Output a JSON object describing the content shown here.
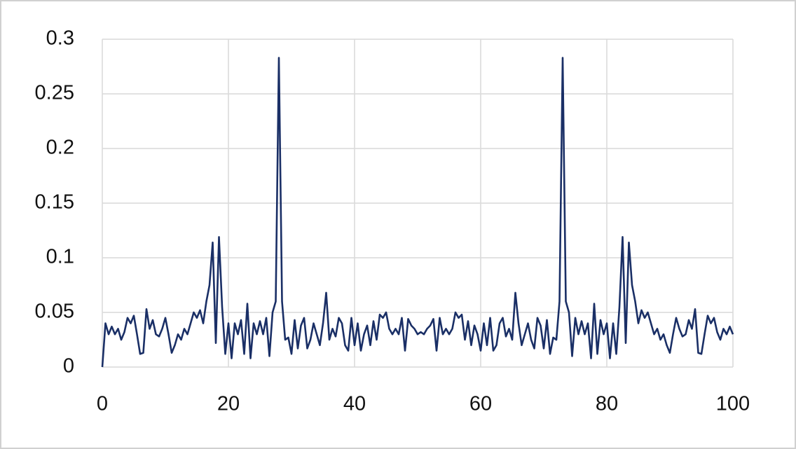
{
  "chart_data": {
    "type": "line",
    "x": [
      0,
      0.5,
      1,
      1.5,
      2,
      2.5,
      3,
      3.5,
      4,
      4.5,
      5,
      5.5,
      6,
      6.5,
      7,
      7.5,
      8,
      8.5,
      9,
      9.5,
      10,
      10.5,
      11,
      11.5,
      12,
      12.5,
      13,
      13.5,
      14,
      14.5,
      15,
      15.5,
      16,
      16.5,
      17,
      17.5,
      18,
      18.5,
      19,
      19.5,
      20,
      20.5,
      21,
      21.5,
      22,
      22.5,
      23,
      23.5,
      24,
      24.5,
      25,
      25.5,
      26,
      26.5,
      27,
      27.5,
      28,
      28.5,
      29,
      29.5,
      30,
      30.5,
      31,
      31.5,
      32,
      32.5,
      33,
      33.5,
      34,
      34.5,
      35,
      35.5,
      36,
      36.5,
      37,
      37.5,
      38,
      38.5,
      39,
      39.5,
      40,
      40.5,
      41,
      41.5,
      42,
      42.5,
      43,
      43.5,
      44,
      44.5,
      45,
      45.5,
      46,
      46.5,
      47,
      47.5,
      48,
      48.5,
      49,
      49.5,
      50,
      50.5,
      51,
      51.5,
      52,
      52.5,
      53,
      53.5,
      54,
      54.5,
      55,
      55.5,
      56,
      56.5,
      57,
      57.5,
      58,
      58.5,
      59,
      59.5,
      60,
      60.5,
      61,
      61.5,
      62,
      62.5,
      63,
      63.5,
      64,
      64.5,
      65,
      65.5,
      66,
      66.5,
      67,
      67.5,
      68,
      68.5,
      69,
      69.5,
      70,
      70.5,
      71,
      71.5,
      72,
      72.5,
      73,
      73.5,
      74,
      74.5,
      75,
      75.5,
      76,
      76.5,
      77,
      77.5,
      78,
      78.5,
      79,
      79.5,
      80,
      80.5,
      81,
      81.5,
      82,
      82.5,
      83,
      83.5,
      84,
      84.5,
      85,
      85.5,
      86,
      86.5,
      87,
      87.5,
      88,
      88.5,
      89,
      89.5,
      90,
      90.5,
      91,
      91.5,
      92,
      92.5,
      93,
      93.5,
      94,
      94.5,
      95,
      95.5,
      96,
      96.5,
      97,
      97.5,
      98,
      98.5,
      99,
      99.5,
      100
    ],
    "series": [
      {
        "color": "#1a2f66",
        "values": [
          0,
          0.04,
          0.03,
          0.037,
          0.03,
          0.035,
          0.025,
          0.032,
          0.045,
          0.04,
          0.047,
          0.03,
          0.012,
          0.013,
          0.053,
          0.035,
          0.043,
          0.03,
          0.028,
          0.035,
          0.045,
          0.03,
          0.013,
          0.02,
          0.03,
          0.025,
          0.035,
          0.03,
          0.04,
          0.05,
          0.045,
          0.052,
          0.04,
          0.06,
          0.075,
          0.114,
          0.022,
          0.119,
          0.055,
          0.012,
          0.04,
          0.008,
          0.04,
          0.03,
          0.043,
          0.012,
          0.058,
          0.008,
          0.04,
          0.03,
          0.042,
          0.03,
          0.045,
          0.01,
          0.05,
          0.06,
          0.283,
          0.06,
          0.025,
          0.027,
          0.012,
          0.043,
          0.017,
          0.038,
          0.045,
          0.017,
          0.025,
          0.04,
          0.03,
          0.02,
          0.04,
          0.068,
          0.025,
          0.035,
          0.028,
          0.045,
          0.04,
          0.02,
          0.015,
          0.045,
          0.02,
          0.04,
          0.015,
          0.03,
          0.038,
          0.02,
          0.042,
          0.025,
          0.048,
          0.045,
          0.05,
          0.035,
          0.03,
          0.035,
          0.03,
          0.045,
          0.015,
          0.044,
          0.038,
          0.035,
          0.03,
          0.032,
          0.03,
          0.035,
          0.038,
          0.044,
          0.015,
          0.045,
          0.03,
          0.035,
          0.03,
          0.035,
          0.05,
          0.045,
          0.048,
          0.025,
          0.042,
          0.02,
          0.038,
          0.03,
          0.015,
          0.04,
          0.02,
          0.045,
          0.015,
          0.02,
          0.04,
          0.045,
          0.028,
          0.035,
          0.025,
          0.068,
          0.04,
          0.02,
          0.03,
          0.04,
          0.025,
          0.017,
          0.045,
          0.038,
          0.017,
          0.043,
          0.012,
          0.027,
          0.025,
          0.06,
          0.283,
          0.06,
          0.05,
          0.01,
          0.045,
          0.03,
          0.042,
          0.03,
          0.04,
          0.008,
          0.058,
          0.012,
          0.043,
          0.03,
          0.04,
          0.008,
          0.04,
          0.012,
          0.055,
          0.119,
          0.022,
          0.114,
          0.075,
          0.06,
          0.04,
          0.052,
          0.045,
          0.05,
          0.04,
          0.03,
          0.035,
          0.025,
          0.03,
          0.02,
          0.013,
          0.03,
          0.045,
          0.035,
          0.028,
          0.03,
          0.043,
          0.035,
          0.053,
          0.013,
          0.012,
          0.03,
          0.047,
          0.04,
          0.045,
          0.032,
          0.025,
          0.035,
          0.03,
          0.037,
          0.03
        ]
      }
    ],
    "xlim": [
      0,
      100
    ],
    "xticks": [
      0,
      20,
      40,
      60,
      80,
      100
    ],
    "ylim": [
      0,
      0.3
    ],
    "yticks": [
      0,
      0.05,
      0.1,
      0.15,
      0.2,
      0.25,
      0.3
    ],
    "grid": true
  }
}
